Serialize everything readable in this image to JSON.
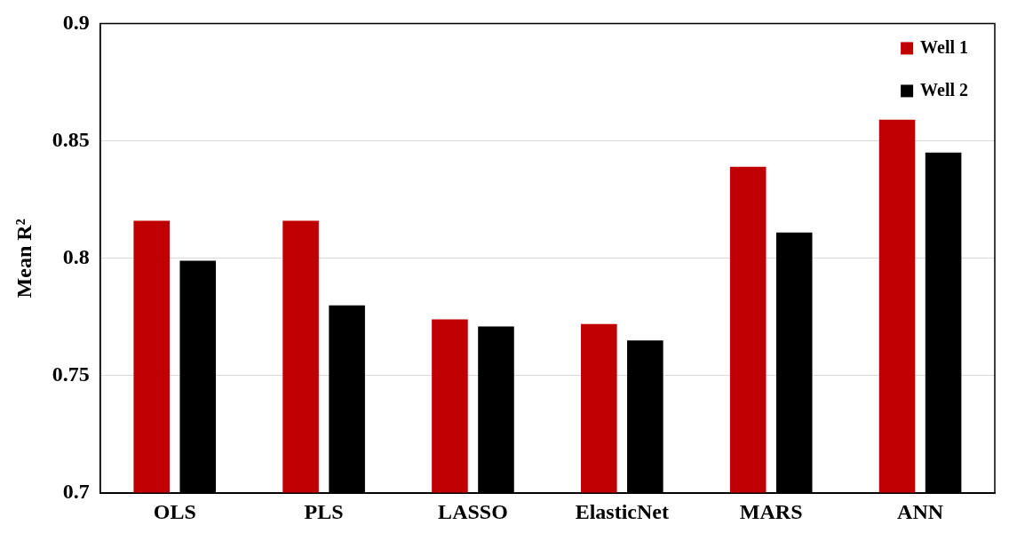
{
  "chart_data": {
    "type": "bar",
    "ylabel": "Mean R²",
    "categories": [
      "OLS",
      "PLS",
      "LASSO",
      "ElasticNet",
      "MARS",
      "ANN"
    ],
    "series": [
      {
        "name": "Well 1",
        "color": "#c00000",
        "values": [
          0.816,
          0.816,
          0.774,
          0.772,
          0.839,
          0.859
        ]
      },
      {
        "name": "Well 2",
        "color": "#000000",
        "values": [
          0.799,
          0.78,
          0.771,
          0.765,
          0.811,
          0.845
        ]
      }
    ],
    "ylim": [
      0.7,
      0.9
    ],
    "yticks": [
      0.7,
      0.75,
      0.8,
      0.85,
      0.9
    ],
    "grid": "y",
    "legend": "top right"
  }
}
